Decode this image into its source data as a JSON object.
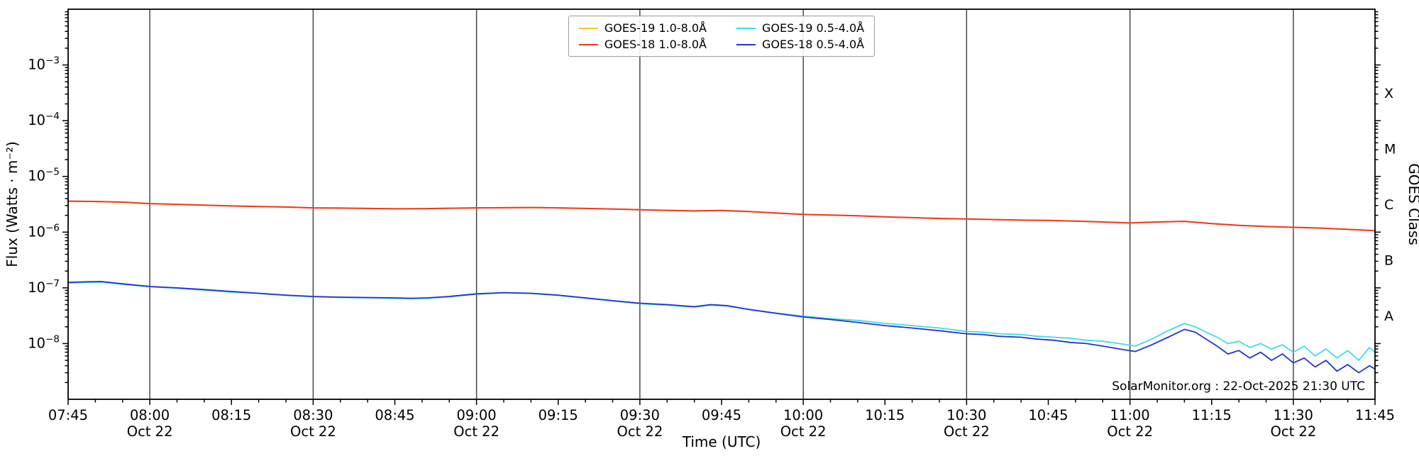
{
  "chart_data": {
    "type": "line",
    "title": "",
    "xlabel": "Time (UTC)",
    "ylabel": "Flux (Watts · m⁻²)",
    "ylabel_right": "GOES Class",
    "annotation": "SolarMonitor.org : 22-Oct-2025 21:30 UTC",
    "legend_position": "upper center",
    "background": "#ffffff",
    "x_axis_scale": "time, minutes after 07:45 UTC",
    "y_axis_scale": "log10",
    "x_range_minutes": [
      0,
      240
    ],
    "y_log_range": [
      -9,
      -2
    ],
    "grid_minutes": [
      15,
      45,
      75,
      105,
      135,
      165,
      195,
      225
    ],
    "gridline_color": "#3d3d3d",
    "x_ticks": [
      {
        "minute": 0,
        "label": "07:45",
        "date": ""
      },
      {
        "minute": 15,
        "label": "08:00",
        "date": "Oct 22"
      },
      {
        "minute": 30,
        "label": "08:15",
        "date": ""
      },
      {
        "minute": 45,
        "label": "08:30",
        "date": "Oct 22"
      },
      {
        "minute": 60,
        "label": "08:45",
        "date": ""
      },
      {
        "minute": 75,
        "label": "09:00",
        "date": "Oct 22"
      },
      {
        "minute": 90,
        "label": "09:15",
        "date": ""
      },
      {
        "minute": 105,
        "label": "09:30",
        "date": "Oct 22"
      },
      {
        "minute": 120,
        "label": "09:45",
        "date": ""
      },
      {
        "minute": 135,
        "label": "10:00",
        "date": "Oct 22"
      },
      {
        "minute": 150,
        "label": "10:15",
        "date": ""
      },
      {
        "minute": 165,
        "label": "10:30",
        "date": "Oct 22"
      },
      {
        "minute": 180,
        "label": "10:45",
        "date": ""
      },
      {
        "minute": 195,
        "label": "11:00",
        "date": "Oct 22"
      },
      {
        "minute": 210,
        "label": "11:15",
        "date": ""
      },
      {
        "minute": 225,
        "label": "11:30",
        "date": "Oct 22"
      },
      {
        "minute": 240,
        "label": "11:45",
        "date": ""
      }
    ],
    "y_tick_exponents": [
      -3,
      -4,
      -5,
      -6,
      -7,
      -8
    ],
    "goes_class": [
      {
        "label": "X",
        "exp": -3.5
      },
      {
        "label": "M",
        "exp": -4.5
      },
      {
        "label": "C",
        "exp": -5.5
      },
      {
        "label": "B",
        "exp": -6.5
      },
      {
        "label": "A",
        "exp": -7.5
      }
    ],
    "series": [
      {
        "name": "GOES-19 1.0-8.0Å",
        "color": "#f9c23c",
        "points": [
          [
            0,
            3.6e-06
          ],
          [
            5,
            3.55e-06
          ],
          [
            10,
            3.45e-06
          ],
          [
            15,
            3.25e-06
          ],
          [
            20,
            3.15e-06
          ],
          [
            25,
            3.05e-06
          ],
          [
            30,
            2.95e-06
          ],
          [
            35,
            2.88e-06
          ],
          [
            40,
            2.82e-06
          ],
          [
            45,
            2.72e-06
          ],
          [
            50,
            2.7e-06
          ],
          [
            55,
            2.66e-06
          ],
          [
            60,
            2.62e-06
          ],
          [
            65,
            2.64e-06
          ],
          [
            70,
            2.68e-06
          ],
          [
            75,
            2.72e-06
          ],
          [
            80,
            2.74e-06
          ],
          [
            85,
            2.76e-06
          ],
          [
            90,
            2.72e-06
          ],
          [
            95,
            2.66e-06
          ],
          [
            100,
            2.6e-06
          ],
          [
            105,
            2.52e-06
          ],
          [
            110,
            2.46e-06
          ],
          [
            115,
            2.4e-06
          ],
          [
            120,
            2.44e-06
          ],
          [
            125,
            2.34e-06
          ],
          [
            130,
            2.2e-06
          ],
          [
            135,
            2.08e-06
          ],
          [
            140,
            2.02e-06
          ],
          [
            145,
            1.96e-06
          ],
          [
            150,
            1.88e-06
          ],
          [
            155,
            1.82e-06
          ],
          [
            160,
            1.76e-06
          ],
          [
            165,
            1.72e-06
          ],
          [
            170,
            1.68e-06
          ],
          [
            175,
            1.64e-06
          ],
          [
            180,
            1.62e-06
          ],
          [
            185,
            1.58e-06
          ],
          [
            190,
            1.52e-06
          ],
          [
            195,
            1.46e-06
          ],
          [
            200,
            1.52e-06
          ],
          [
            205,
            1.56e-06
          ],
          [
            210,
            1.42e-06
          ],
          [
            215,
            1.32e-06
          ],
          [
            220,
            1.26e-06
          ],
          [
            225,
            1.22e-06
          ],
          [
            230,
            1.18e-06
          ],
          [
            235,
            1.12e-06
          ],
          [
            240,
            1.06e-06
          ]
        ]
      },
      {
        "name": "GOES-18 1.0-8.0Å",
        "color": "#ee3a23",
        "points": [
          [
            0,
            3.6e-06
          ],
          [
            5,
            3.55e-06
          ],
          [
            10,
            3.45e-06
          ],
          [
            15,
            3.25e-06
          ],
          [
            20,
            3.15e-06
          ],
          [
            25,
            3.05e-06
          ],
          [
            30,
            2.95e-06
          ],
          [
            35,
            2.88e-06
          ],
          [
            40,
            2.82e-06
          ],
          [
            45,
            2.72e-06
          ],
          [
            50,
            2.7e-06
          ],
          [
            55,
            2.66e-06
          ],
          [
            60,
            2.62e-06
          ],
          [
            65,
            2.64e-06
          ],
          [
            70,
            2.68e-06
          ],
          [
            75,
            2.72e-06
          ],
          [
            80,
            2.74e-06
          ],
          [
            85,
            2.76e-06
          ],
          [
            90,
            2.72e-06
          ],
          [
            95,
            2.66e-06
          ],
          [
            100,
            2.6e-06
          ],
          [
            105,
            2.52e-06
          ],
          [
            110,
            2.46e-06
          ],
          [
            115,
            2.4e-06
          ],
          [
            120,
            2.44e-06
          ],
          [
            125,
            2.34e-06
          ],
          [
            130,
            2.2e-06
          ],
          [
            135,
            2.08e-06
          ],
          [
            140,
            2.02e-06
          ],
          [
            145,
            1.96e-06
          ],
          [
            150,
            1.88e-06
          ],
          [
            155,
            1.82e-06
          ],
          [
            160,
            1.76e-06
          ],
          [
            165,
            1.72e-06
          ],
          [
            170,
            1.68e-06
          ],
          [
            175,
            1.64e-06
          ],
          [
            180,
            1.62e-06
          ],
          [
            185,
            1.58e-06
          ],
          [
            190,
            1.52e-06
          ],
          [
            195,
            1.46e-06
          ],
          [
            200,
            1.52e-06
          ],
          [
            205,
            1.56e-06
          ],
          [
            210,
            1.42e-06
          ],
          [
            215,
            1.32e-06
          ],
          [
            220,
            1.26e-06
          ],
          [
            225,
            1.22e-06
          ],
          [
            230,
            1.18e-06
          ],
          [
            235,
            1.12e-06
          ],
          [
            240,
            1.06e-06
          ]
        ]
      },
      {
        "name": "GOES-19 0.5-4.0Å",
        "color": "#3fdde4",
        "points": [
          [
            0,
            1.22e-07
          ],
          [
            3,
            1.25e-07
          ],
          [
            6,
            1.27e-07
          ],
          [
            10,
            1.16e-07
          ],
          [
            15,
            1.04e-07
          ],
          [
            20,
            9.8e-08
          ],
          [
            25,
            9.1e-08
          ],
          [
            30,
            8.4e-08
          ],
          [
            35,
            7.9e-08
          ],
          [
            40,
            7.3e-08
          ],
          [
            45,
            6.9e-08
          ],
          [
            50,
            6.7e-08
          ],
          [
            55,
            6.6e-08
          ],
          [
            60,
            6.5e-08
          ],
          [
            63,
            6.4e-08
          ],
          [
            66,
            6.5e-08
          ],
          [
            70,
            6.9e-08
          ],
          [
            75,
            7.7e-08
          ],
          [
            80,
            8.1e-08
          ],
          [
            85,
            7.9e-08
          ],
          [
            90,
            7.3e-08
          ],
          [
            95,
            6.5e-08
          ],
          [
            100,
            5.8e-08
          ],
          [
            105,
            5.2e-08
          ],
          [
            110,
            4.9e-08
          ],
          [
            115,
            4.5e-08
          ],
          [
            118,
            4.9e-08
          ],
          [
            121,
            4.7e-08
          ],
          [
            125,
            4.1e-08
          ],
          [
            130,
            3.5e-08
          ],
          [
            135,
            3.1e-08
          ],
          [
            140,
            2.8e-08
          ],
          [
            145,
            2.6e-08
          ],
          [
            150,
            2.3e-08
          ],
          [
            155,
            2.1e-08
          ],
          [
            160,
            1.9e-08
          ],
          [
            165,
            1.65e-08
          ],
          [
            168,
            1.6e-08
          ],
          [
            171,
            1.5e-08
          ],
          [
            175,
            1.45e-08
          ],
          [
            178,
            1.35e-08
          ],
          [
            181,
            1.3e-08
          ],
          [
            184,
            1.25e-08
          ],
          [
            187,
            1.15e-08
          ],
          [
            190,
            1.1e-08
          ],
          [
            193,
            1e-08
          ],
          [
            196,
            9e-09
          ],
          [
            199,
            1.2e-08
          ],
          [
            202,
            1.7e-08
          ],
          [
            205,
            2.3e-08
          ],
          [
            207,
            2e-08
          ],
          [
            209,
            1.6e-08
          ],
          [
            211,
            1.3e-08
          ],
          [
            213,
            1e-08
          ],
          [
            215,
            1.1e-08
          ],
          [
            217,
            8.5e-09
          ],
          [
            219,
            1e-08
          ],
          [
            221,
            8e-09
          ],
          [
            223,
            9.5e-09
          ],
          [
            225,
            7e-09
          ],
          [
            227,
            9e-09
          ],
          [
            229,
            6e-09
          ],
          [
            231,
            8e-09
          ],
          [
            233,
            5.5e-09
          ],
          [
            235,
            7.5e-09
          ],
          [
            237,
            5e-09
          ],
          [
            239,
            8.5e-09
          ],
          [
            240,
            7e-09
          ]
        ]
      },
      {
        "name": "GOES-18 0.5-4.0Å",
        "color": "#2733cf",
        "points": [
          [
            0,
            1.25e-07
          ],
          [
            3,
            1.28e-07
          ],
          [
            6,
            1.3e-07
          ],
          [
            10,
            1.18e-07
          ],
          [
            15,
            1.06e-07
          ],
          [
            20,
            1e-07
          ],
          [
            25,
            9.3e-08
          ],
          [
            30,
            8.6e-08
          ],
          [
            35,
            8e-08
          ],
          [
            40,
            7.4e-08
          ],
          [
            45,
            7e-08
          ],
          [
            50,
            6.8e-08
          ],
          [
            55,
            6.7e-08
          ],
          [
            60,
            6.6e-08
          ],
          [
            63,
            6.5e-08
          ],
          [
            66,
            6.6e-08
          ],
          [
            70,
            7e-08
          ],
          [
            75,
            7.8e-08
          ],
          [
            80,
            8.2e-08
          ],
          [
            85,
            8e-08
          ],
          [
            90,
            7.4e-08
          ],
          [
            95,
            6.6e-08
          ],
          [
            100,
            5.9e-08
          ],
          [
            105,
            5.3e-08
          ],
          [
            110,
            5e-08
          ],
          [
            115,
            4.6e-08
          ],
          [
            118,
            5e-08
          ],
          [
            121,
            4.8e-08
          ],
          [
            125,
            4.1e-08
          ],
          [
            130,
            3.5e-08
          ],
          [
            135,
            3e-08
          ],
          [
            140,
            2.7e-08
          ],
          [
            145,
            2.4e-08
          ],
          [
            150,
            2.1e-08
          ],
          [
            155,
            1.9e-08
          ],
          [
            160,
            1.7e-08
          ],
          [
            165,
            1.5e-08
          ],
          [
            168,
            1.45e-08
          ],
          [
            171,
            1.35e-08
          ],
          [
            175,
            1.3e-08
          ],
          [
            178,
            1.2e-08
          ],
          [
            181,
            1.15e-08
          ],
          [
            184,
            1.05e-08
          ],
          [
            187,
            1e-08
          ],
          [
            190,
            9e-09
          ],
          [
            193,
            8e-09
          ],
          [
            196,
            7.2e-09
          ],
          [
            199,
            9.5e-09
          ],
          [
            202,
            1.3e-08
          ],
          [
            205,
            1.8e-08
          ],
          [
            207,
            1.6e-08
          ],
          [
            209,
            1.2e-08
          ],
          [
            211,
            9e-09
          ],
          [
            213,
            6.5e-09
          ],
          [
            215,
            7.5e-09
          ],
          [
            217,
            5.5e-09
          ],
          [
            219,
            7e-09
          ],
          [
            221,
            5e-09
          ],
          [
            223,
            6.5e-09
          ],
          [
            225,
            4.5e-09
          ],
          [
            227,
            5.5e-09
          ],
          [
            229,
            3.8e-09
          ],
          [
            231,
            5e-09
          ],
          [
            233,
            3.2e-09
          ],
          [
            235,
            4.2e-09
          ],
          [
            237,
            3e-09
          ],
          [
            239,
            4e-09
          ],
          [
            240,
            3.5e-09
          ]
        ]
      }
    ]
  }
}
